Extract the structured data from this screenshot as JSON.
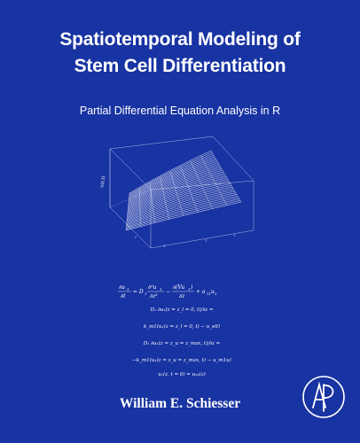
{
  "cover": {
    "title_line1": "Spatiotemporal Modeling of",
    "title_line2": "Stem Cell Differentiation",
    "subtitle": "Partial Differential Equation Analysis in R",
    "author": "William E. Schiesser",
    "plot_axis_label": "u(z,t)",
    "publisher_logo": "AP",
    "background_color": "#1833a2"
  },
  "equations": {
    "eq1_lhs": "∂u₁/∂t = D₁ ∂²u₁/∂z² − ∂(Vu₁)/∂z + a₁₁u₁",
    "eq2": "D₁ ∂u₁(z = z_l = 0, t)/∂z =",
    "eq3": "k_m1(u₁(z = z_l = 0, t) − u_ell)",
    "eq4": "D₁ ∂u₁(z = z_u = z_max, t)/∂z =",
    "eq5": "−k_m1(u₁(z = z_u = z_max, t) − u_m1u)",
    "eq6": "u₁(z, t = 0) = u₁₀(z)"
  }
}
